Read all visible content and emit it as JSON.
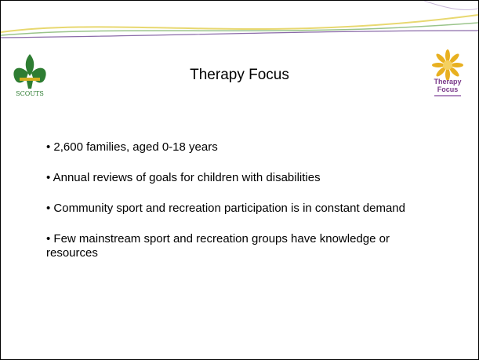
{
  "title": "Therapy Focus",
  "logos": {
    "left": "SCOUTS",
    "right": [
      "Therapy",
      "Focus"
    ]
  },
  "bullets": [
    "• 2,600 families, aged 0-18 years",
    "• Annual reviews of goals for children with disabilities",
    "• Community sport and recreation participation is in constant demand",
    "• Few mainstream sport and recreation groups have knowledge or resources"
  ]
}
